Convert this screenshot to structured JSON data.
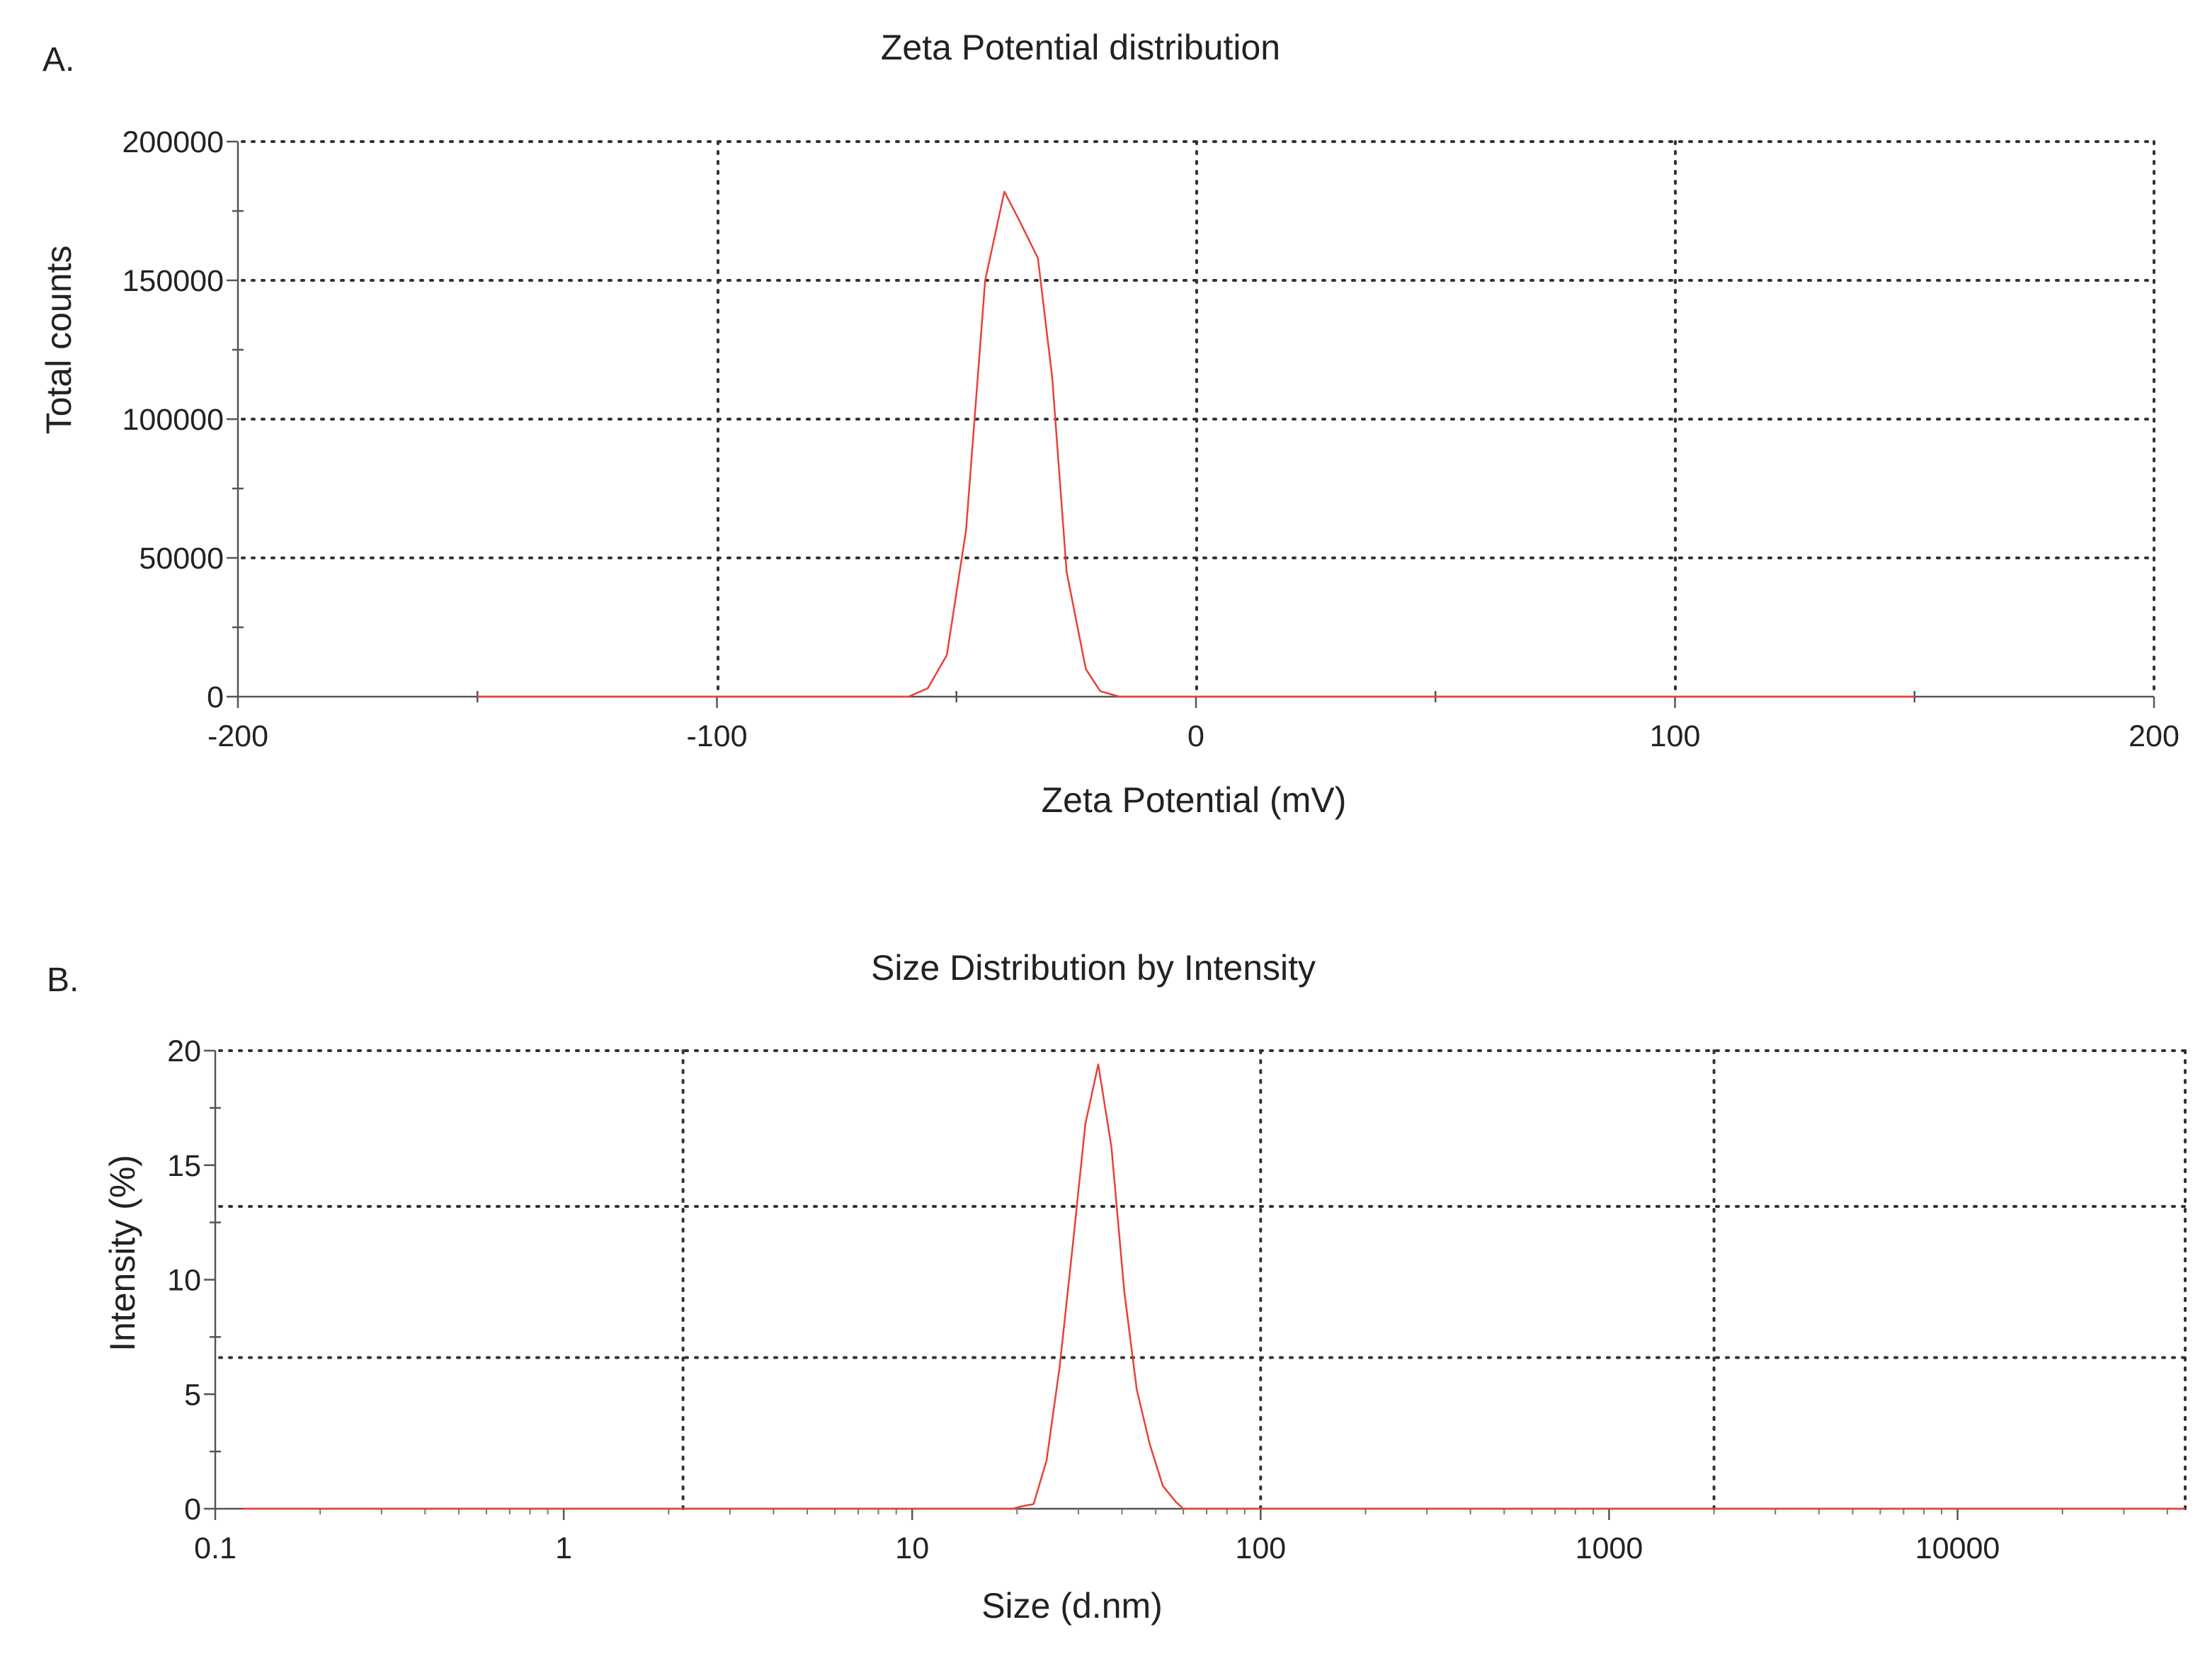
{
  "chart_data": [
    {
      "panel_label": "A.",
      "type": "line",
      "title": "Zeta Potential distribution",
      "xlabel": "Zeta Potential (mV)",
      "ylabel": "Total counts",
      "xlim": [
        -200,
        200
      ],
      "ylim": [
        0,
        200000
      ],
      "x_scale": "linear",
      "x_ticks": [
        {
          "value": -200,
          "label": "-200"
        },
        {
          "value": -100,
          "label": "-100"
        },
        {
          "value": 0,
          "label": "0"
        },
        {
          "value": 100,
          "label": "100"
        },
        {
          "value": 200,
          "label": "200"
        }
      ],
      "y_ticks": [
        {
          "value": 0,
          "label": "0"
        },
        {
          "value": 50000,
          "label": "50000"
        },
        {
          "value": 100000,
          "label": "100000"
        },
        {
          "value": 150000,
          "label": "150000"
        },
        {
          "value": 200000,
          "label": "200000"
        }
      ],
      "grid": "dotted",
      "line_color": "#e8413a",
      "series": [
        {
          "x": [
            -150,
            -60,
            -56,
            -52,
            -48,
            -44,
            -40,
            -37,
            -33,
            -30,
            -27,
            -23,
            -20,
            -16,
            -10,
            0,
            50,
            100,
            150
          ],
          "y": [
            0,
            0,
            3000,
            15000,
            60000,
            150000,
            182000,
            172000,
            158000,
            115000,
            45000,
            10000,
            2000,
            0,
            0,
            0,
            0,
            0,
            0
          ]
        }
      ]
    },
    {
      "panel_label": "B.",
      "type": "line",
      "title": "Size Distribution by Intensity",
      "xlabel": "Size (d.nm)",
      "ylabel": "Intensity (%)",
      "xlim": [
        0.1,
        45000
      ],
      "ylim": [
        0,
        20
      ],
      "x_scale": "log",
      "x_ticks": [
        {
          "value": 0.1,
          "label": "0.1"
        },
        {
          "value": 1,
          "label": "1"
        },
        {
          "value": 10,
          "label": "10"
        },
        {
          "value": 100,
          "label": "100"
        },
        {
          "value": 1000,
          "label": "1000"
        },
        {
          "value": 10000,
          "label": "10000"
        }
      ],
      "y_ticks": [
        {
          "value": 0,
          "label": "0"
        },
        {
          "value": 5,
          "label": "5"
        },
        {
          "value": 10,
          "label": "10"
        },
        {
          "value": 15,
          "label": "15"
        },
        {
          "value": 20,
          "label": "20"
        }
      ],
      "x_gridlines": [
        2.2,
        100,
        2000,
        45000
      ],
      "y_gridlines": [
        6.6,
        13.2,
        20
      ],
      "grid": "dotted",
      "line_color": "#e8413a",
      "series": [
        {
          "x": [
            0.12,
            19.5,
            20.5,
            22.3,
            24.3,
            26.5,
            28.9,
            31.4,
            34.2,
            37.3,
            40.6,
            44.1,
            48.1,
            52.4,
            57.1,
            60,
            45000
          ],
          "y": [
            0,
            0,
            0.1,
            0.2,
            2.1,
            6.2,
            11.5,
            16.8,
            19.4,
            15.8,
            9.5,
            5.2,
            2.8,
            1.0,
            0.3,
            0,
            0
          ]
        }
      ]
    }
  ]
}
